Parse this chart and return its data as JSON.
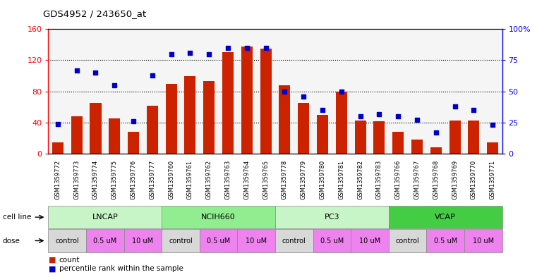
{
  "title": "GDS4952 / 243650_at",
  "samples": [
    "GSM1359772",
    "GSM1359773",
    "GSM1359774",
    "GSM1359775",
    "GSM1359776",
    "GSM1359777",
    "GSM1359760",
    "GSM1359761",
    "GSM1359762",
    "GSM1359763",
    "GSM1359764",
    "GSM1359765",
    "GSM1359778",
    "GSM1359779",
    "GSM1359780",
    "GSM1359781",
    "GSM1359782",
    "GSM1359783",
    "GSM1359766",
    "GSM1359767",
    "GSM1359768",
    "GSM1359769",
    "GSM1359770",
    "GSM1359771"
  ],
  "counts": [
    15,
    48,
    65,
    45,
    28,
    62,
    90,
    100,
    93,
    130,
    138,
    135,
    88,
    65,
    50,
    80,
    43,
    42,
    28,
    18,
    8,
    43,
    43,
    15
  ],
  "percentiles": [
    24,
    67,
    65,
    55,
    26,
    63,
    80,
    81,
    80,
    85,
    85,
    85,
    50,
    46,
    35,
    50,
    30,
    32,
    30,
    27,
    17,
    38,
    35,
    23
  ],
  "bar_color": "#cc2200",
  "dot_color": "#0000cc",
  "ylim_left": [
    0,
    160
  ],
  "ylim_right": [
    0,
    100
  ],
  "yticks_left": [
    0,
    40,
    80,
    120,
    160
  ],
  "yticks_right": [
    0,
    25,
    50,
    75,
    100
  ],
  "ytick_labels_left": [
    "0",
    "40",
    "80",
    "120",
    "160"
  ],
  "ytick_labels_right": [
    "0",
    "25",
    "50",
    "75",
    "100%"
  ],
  "cell_line_groups": [
    {
      "label": "LNCAP",
      "start": 0,
      "end": 5,
      "color": "#c8f5c8"
    },
    {
      "label": "NCIH660",
      "start": 6,
      "end": 11,
      "color": "#90ee90"
    },
    {
      "label": "PC3",
      "start": 12,
      "end": 17,
      "color": "#c8f5c8"
    },
    {
      "label": "VCAP",
      "start": 18,
      "end": 23,
      "color": "#44cc44"
    }
  ],
  "dose_groups": [
    {
      "label": "control",
      "start": 0,
      "end": 1,
      "color": "#d8d8d8"
    },
    {
      "label": "0.5 uM",
      "start": 2,
      "end": 3,
      "color": "#ee82ee"
    },
    {
      "label": "10 uM",
      "start": 4,
      "end": 5,
      "color": "#ee82ee"
    },
    {
      "label": "control",
      "start": 6,
      "end": 7,
      "color": "#d8d8d8"
    },
    {
      "label": "0.5 uM",
      "start": 8,
      "end": 9,
      "color": "#ee82ee"
    },
    {
      "label": "10 uM",
      "start": 10,
      "end": 11,
      "color": "#ee82ee"
    },
    {
      "label": "control",
      "start": 12,
      "end": 13,
      "color": "#d8d8d8"
    },
    {
      "label": "0.5 uM",
      "start": 14,
      "end": 15,
      "color": "#ee82ee"
    },
    {
      "label": "10 uM",
      "start": 16,
      "end": 17,
      "color": "#ee82ee"
    },
    {
      "label": "control",
      "start": 18,
      "end": 19,
      "color": "#d8d8d8"
    },
    {
      "label": "0.5 uM",
      "start": 20,
      "end": 21,
      "color": "#ee82ee"
    },
    {
      "label": "10 uM",
      "start": 22,
      "end": 23,
      "color": "#ee82ee"
    }
  ],
  "legend_count_color": "#cc2200",
  "legend_dot_color": "#0000cc",
  "legend_count_label": "count",
  "legend_dot_label": "percentile rank within the sample",
  "background_color": "#ffffff",
  "plot_bg_color": "#f5f5f5",
  "label_bg_color": "#c8c8c8"
}
